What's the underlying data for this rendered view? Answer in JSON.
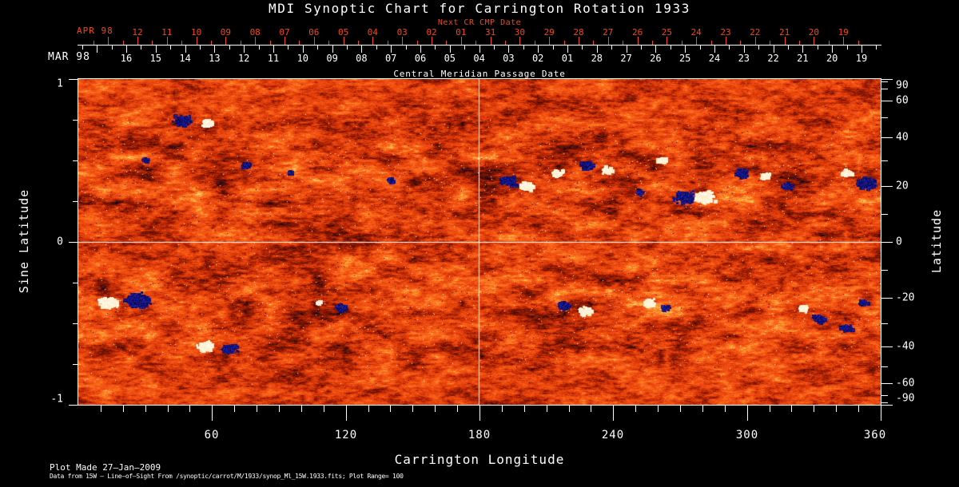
{
  "title": "MDI Synoptic Chart for Carrington Rotation 1933",
  "colors": {
    "background": "#000000",
    "text": "#ffffff",
    "accent_red": "#ef4a18",
    "map_base": "#e850100"
  },
  "top_axis": {
    "next_cr_caption": "Next CR CMP Date",
    "next_cr_month": "APR 98",
    "next_cr_days": [
      "12",
      "11",
      "10",
      "09",
      "08",
      "07",
      "06",
      "05",
      "04",
      "03",
      "02",
      "01",
      "31",
      "30",
      "29",
      "28",
      "27",
      "26",
      "25",
      "24",
      "23",
      "22",
      "21",
      "20",
      "19"
    ],
    "cmp_month": "MAR 98",
    "cmp_days": [
      "16",
      "15",
      "14",
      "13",
      "12",
      "11",
      "10",
      "09",
      "08",
      "07",
      "06",
      "05",
      "04",
      "03",
      "02",
      "01",
      "28",
      "27",
      "26",
      "25",
      "24",
      "23",
      "22",
      "21",
      "20",
      "19"
    ],
    "cmp_caption": "Central Meridian Passage Date"
  },
  "left_axis": {
    "label": "Sine Latitude",
    "ticks": [
      "1",
      "0",
      "-1"
    ]
  },
  "right_axis": {
    "label": "Latitude",
    "ticks": [
      "90",
      "60",
      "40",
      "20",
      "0",
      "-20",
      "-40",
      "-60",
      "-90"
    ]
  },
  "bottom_axis": {
    "label": "Carrington Longitude",
    "ticks": [
      "60",
      "120",
      "180",
      "240",
      "300",
      "360"
    ]
  },
  "footer": {
    "line1": "Plot Made 27–Jan–2009",
    "line2": "Data from 15W – Line–of–Sight From /synoptic/carrot/M/1933/synop_Ml_15W.1933.fits; Plot Range=  100"
  },
  "chart_data": {
    "type": "heatmap",
    "subtype": "solar-synoptic-magnetogram",
    "title": "MDI Synoptic Chart for Carrington Rotation 1933",
    "carrington_rotation": 1933,
    "plot_range_gauss": 100,
    "x_axis": {
      "label": "Carrington Longitude",
      "range": [
        0,
        360
      ],
      "major_ticks": [
        60,
        120,
        180,
        240,
        300,
        360
      ],
      "minor_tick_step": 10
    },
    "y_axis_left": {
      "label": "Sine Latitude",
      "range": [
        -1,
        1
      ],
      "labeled_ticks": [
        1,
        0,
        -1
      ],
      "minor_tick_step": 0.25
    },
    "y_axis_right": {
      "label": "Latitude",
      "labeled_ticks": [
        90,
        60,
        40,
        20,
        0,
        -20,
        -40,
        -60,
        -90
      ],
      "minor_tick_step_deg": 10,
      "spacing": "sine"
    },
    "top_axis": {
      "cmp_dates": "MAR 98: 16 down to 01 then FEB: 28 down to 19 (left to right)",
      "next_cr_dates": "APR 98: 12 down to 01 then MAR: 31 down to 19"
    },
    "reference_lines": {
      "vertical_longitude": 180,
      "horizontal_sine_latitude": 0
    },
    "legend": "line-of-sight magnetic field; negative polarity = dark blue/black, neutral = red-orange, positive polarity = yellow/white",
    "palette_stops": [
      [
        0.0,
        [
          60,
          60,
          215
        ]
      ],
      [
        0.05,
        [
          25,
          25,
          150
        ]
      ],
      [
        0.1,
        [
          5,
          5,
          80
        ]
      ],
      [
        0.16,
        [
          25,
          8,
          20
        ]
      ],
      [
        0.24,
        [
          95,
          15,
          3
        ]
      ],
      [
        0.36,
        [
          160,
          30,
          3
        ]
      ],
      [
        0.48,
        [
          225,
          60,
          10
        ]
      ],
      [
        0.6,
        [
          245,
          85,
          20
        ]
      ],
      [
        0.72,
        [
          252,
          125,
          35
        ]
      ],
      [
        0.82,
        [
          255,
          180,
          70
        ]
      ],
      [
        0.9,
        [
          255,
          225,
          150
        ]
      ],
      [
        1.0,
        [
          255,
          255,
          255
        ]
      ]
    ],
    "active_regions": [
      {
        "lon": 47,
        "lat": 48,
        "polarity": -1,
        "size": 10
      },
      {
        "lon": 58,
        "lat": 47,
        "polarity": 1,
        "size": 7
      },
      {
        "lon": 30,
        "lat": 30,
        "polarity": -1,
        "size": 4
      },
      {
        "lon": 75,
        "lat": 28,
        "polarity": -1,
        "size": 5
      },
      {
        "lon": 95,
        "lat": 25,
        "polarity": -1,
        "size": 4
      },
      {
        "lon": 140,
        "lat": 22,
        "polarity": -1,
        "size": 5
      },
      {
        "lon": 13,
        "lat": -22,
        "polarity": 1,
        "size": 11
      },
      {
        "lon": 27,
        "lat": -21,
        "polarity": -1,
        "size": 13
      },
      {
        "lon": 57,
        "lat": -40,
        "polarity": 1,
        "size": 9
      },
      {
        "lon": 68,
        "lat": -41,
        "polarity": -1,
        "size": 9
      },
      {
        "lon": 108,
        "lat": -22,
        "polarity": 1,
        "size": 4
      },
      {
        "lon": 118,
        "lat": -24,
        "polarity": -1,
        "size": 7
      },
      {
        "lon": 193,
        "lat": 22,
        "polarity": -1,
        "size": 8
      },
      {
        "lon": 201,
        "lat": 20,
        "polarity": 1,
        "size": 8
      },
      {
        "lon": 215,
        "lat": 25,
        "polarity": 1,
        "size": 6
      },
      {
        "lon": 228,
        "lat": 28,
        "polarity": -1,
        "size": 8
      },
      {
        "lon": 237,
        "lat": 26,
        "polarity": 1,
        "size": 6
      },
      {
        "lon": 252,
        "lat": 18,
        "polarity": -1,
        "size": 5
      },
      {
        "lon": 262,
        "lat": 30,
        "polarity": 1,
        "size": 6
      },
      {
        "lon": 272,
        "lat": 16,
        "polarity": -1,
        "size": 11
      },
      {
        "lon": 281,
        "lat": 16,
        "polarity": 1,
        "size": 11
      },
      {
        "lon": 298,
        "lat": 25,
        "polarity": -1,
        "size": 7
      },
      {
        "lon": 308,
        "lat": 24,
        "polarity": 1,
        "size": 6
      },
      {
        "lon": 318,
        "lat": 20,
        "polarity": -1,
        "size": 6
      },
      {
        "lon": 345,
        "lat": 25,
        "polarity": 1,
        "size": 6
      },
      {
        "lon": 354,
        "lat": 21,
        "polarity": -1,
        "size": 11
      },
      {
        "lon": 218,
        "lat": -23,
        "polarity": -1,
        "size": 7
      },
      {
        "lon": 228,
        "lat": -25,
        "polarity": 1,
        "size": 8
      },
      {
        "lon": 256,
        "lat": -22,
        "polarity": 1,
        "size": 7
      },
      {
        "lon": 264,
        "lat": -24,
        "polarity": -1,
        "size": 5
      },
      {
        "lon": 325,
        "lat": -24,
        "polarity": 1,
        "size": 6
      },
      {
        "lon": 332,
        "lat": -28,
        "polarity": -1,
        "size": 7
      },
      {
        "lon": 345,
        "lat": -32,
        "polarity": -1,
        "size": 7
      },
      {
        "lon": 352,
        "lat": -22,
        "polarity": -1,
        "size": 5
      }
    ]
  }
}
